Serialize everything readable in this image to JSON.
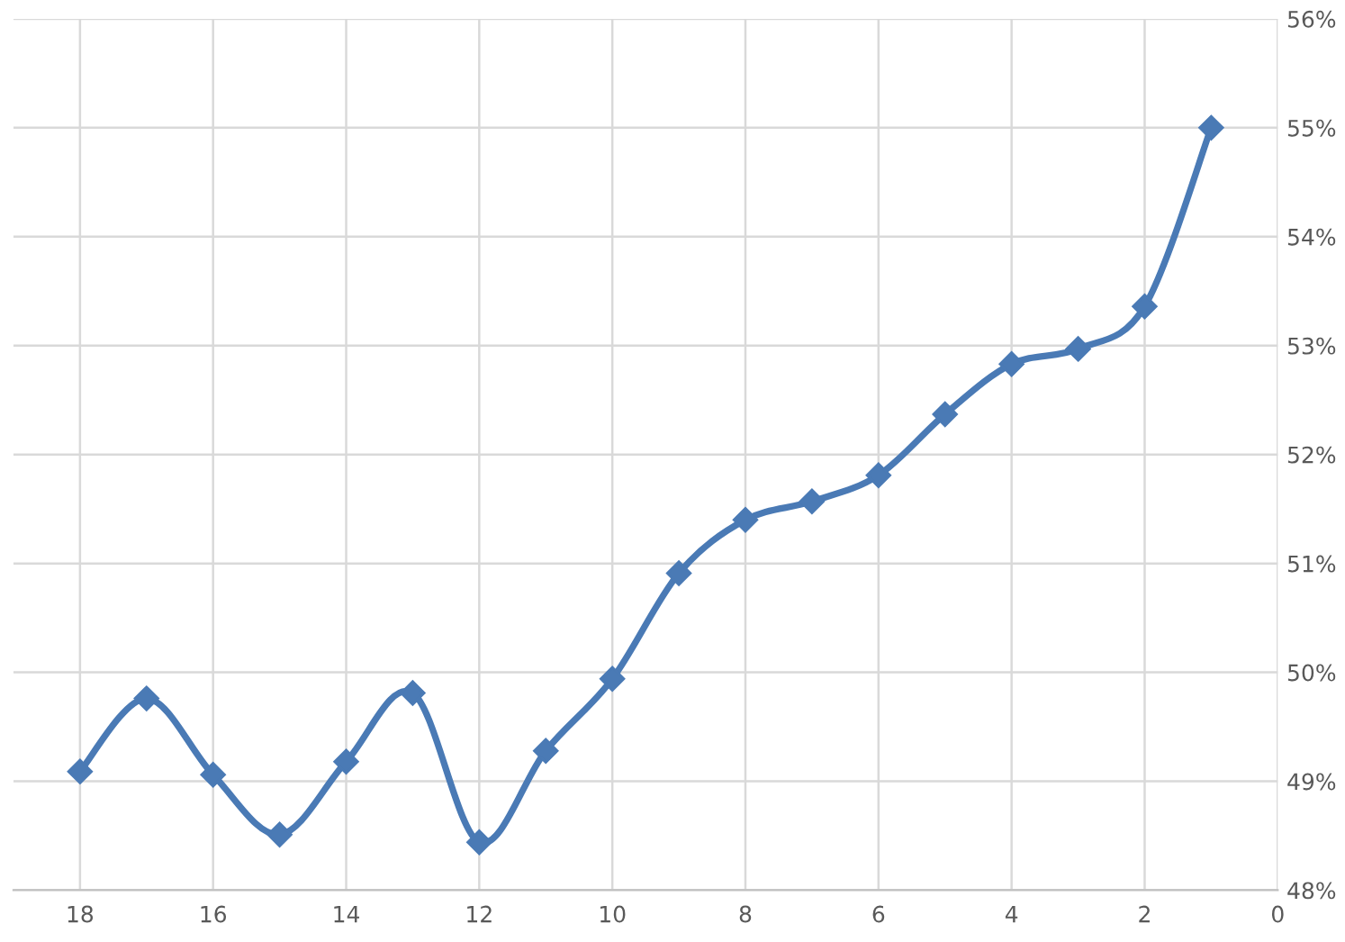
{
  "chart_data": {
    "type": "line",
    "x": [
      18,
      17,
      16,
      15,
      14,
      13,
      12,
      11,
      10,
      9,
      8,
      7,
      6,
      5,
      4,
      3,
      2,
      1
    ],
    "series": [
      {
        "color": "#4a7ab5",
        "values": [
          49.09,
          49.76,
          49.06,
          48.51,
          49.18,
          49.81,
          48.44,
          49.28,
          49.94,
          50.91,
          51.4,
          51.57,
          51.81,
          52.37,
          52.83,
          52.97,
          53.36,
          55.0
        ]
      }
    ],
    "xlim": [
      19,
      0
    ],
    "xticks": [
      18,
      16,
      14,
      12,
      10,
      8,
      6,
      4,
      2,
      0
    ],
    "ylim": [
      48,
      56
    ],
    "yticks": [
      {
        "value": 48,
        "label": "48%"
      },
      {
        "value": 49,
        "label": "49%"
      },
      {
        "value": 50,
        "label": "50%"
      },
      {
        "value": 51,
        "label": "51%"
      },
      {
        "value": 52,
        "label": "52%"
      },
      {
        "value": 53,
        "label": "53%"
      },
      {
        "value": 54,
        "label": "54%"
      },
      {
        "value": 55,
        "label": "55%"
      },
      {
        "value": 56,
        "label": "56%"
      }
    ],
    "grid": true,
    "marker": "diamond",
    "line_style": "solid",
    "legend": false
  }
}
